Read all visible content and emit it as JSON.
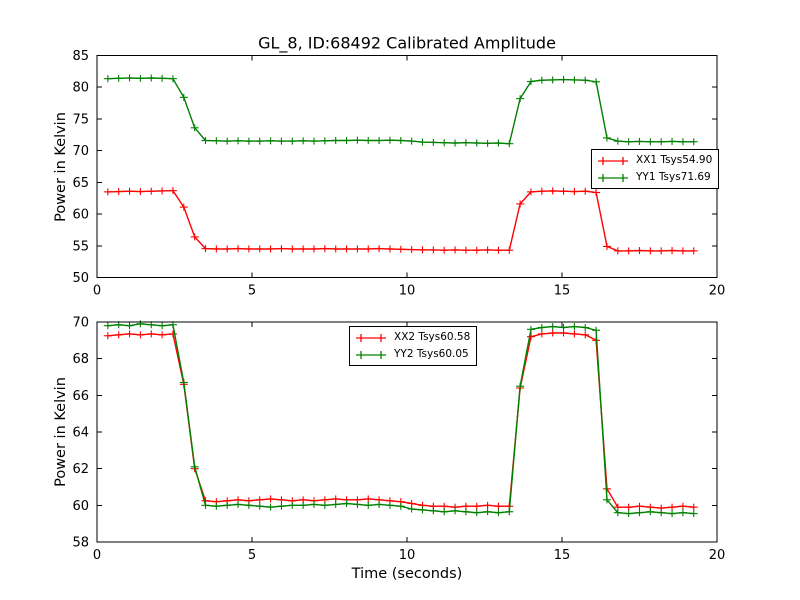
{
  "figure": {
    "background": "#ffffff",
    "text_color": "#000000"
  },
  "chart_data": [
    {
      "type": "line",
      "title": "GL_8, ID:68492 Calibrated Amplitude",
      "xlabel": "",
      "ylabel": "Power in Kelvin",
      "xlim": [
        0,
        20
      ],
      "ylim": [
        50,
        85
      ],
      "xticks": [
        0,
        5,
        10,
        15,
        20
      ],
      "yticks": [
        50,
        55,
        60,
        65,
        70,
        75,
        80,
        85
      ],
      "grid": false,
      "legend_position": "center right",
      "marker": "plus-errorbar",
      "x": [
        0.35,
        0.7,
        1.05,
        1.4,
        1.75,
        2.1,
        2.45,
        2.8,
        3.15,
        3.5,
        3.85,
        4.2,
        4.55,
        4.9,
        5.25,
        5.6,
        5.95,
        6.3,
        6.65,
        7,
        7.35,
        7.7,
        8.05,
        8.4,
        8.75,
        9.1,
        9.45,
        9.8,
        10.15,
        10.5,
        10.85,
        11.2,
        11.55,
        11.9,
        12.25,
        12.6,
        12.95,
        13.3,
        13.65,
        14,
        14.35,
        14.7,
        15.05,
        15.4,
        15.75,
        16.1,
        16.45,
        16.8,
        17.15,
        17.5,
        17.85,
        18.2,
        18.55,
        18.9,
        19.25
      ],
      "series": [
        {
          "name": "XX1 Tsys54.90",
          "color": "#ff0000",
          "values": [
            63.5,
            63.55,
            63.6,
            63.55,
            63.6,
            63.65,
            63.7,
            61.1,
            56.4,
            54.55,
            54.5,
            54.5,
            54.55,
            54.5,
            54.5,
            54.5,
            54.55,
            54.5,
            54.5,
            54.5,
            54.55,
            54.5,
            54.5,
            54.5,
            54.5,
            54.55,
            54.5,
            54.45,
            54.4,
            54.35,
            54.35,
            54.3,
            54.35,
            54.3,
            54.3,
            54.35,
            54.3,
            54.3,
            61.6,
            63.5,
            63.6,
            63.65,
            63.6,
            63.55,
            63.6,
            63.4,
            54.9,
            54.2,
            54.2,
            54.25,
            54.2,
            54.2,
            54.25,
            54.2,
            54.2
          ]
        },
        {
          "name": "YY1 Tsys71.69",
          "color": "#008000",
          "values": [
            81.35,
            81.4,
            81.45,
            81.4,
            81.45,
            81.4,
            81.35,
            78.4,
            73.6,
            71.6,
            71.55,
            71.5,
            71.55,
            71.5,
            71.5,
            71.55,
            71.5,
            71.5,
            71.55,
            71.5,
            71.55,
            71.6,
            71.6,
            71.65,
            71.6,
            71.6,
            71.65,
            71.6,
            71.5,
            71.35,
            71.3,
            71.25,
            71.2,
            71.25,
            71.2,
            71.15,
            71.2,
            71.1,
            78.2,
            80.9,
            81.1,
            81.15,
            81.2,
            81.15,
            81.1,
            80.85,
            72.0,
            71.5,
            71.4,
            71.45,
            71.4,
            71.4,
            71.45,
            71.4,
            71.4
          ]
        }
      ]
    },
    {
      "type": "line",
      "title": "",
      "xlabel": "Time (seconds)",
      "ylabel": "Power in Kelvin",
      "xlim": [
        0,
        20
      ],
      "ylim": [
        58,
        70
      ],
      "xticks": [
        0,
        5,
        10,
        15,
        20
      ],
      "yticks": [
        58,
        60,
        62,
        64,
        66,
        68,
        70
      ],
      "grid": false,
      "legend_position": "upper center",
      "marker": "plus-errorbar",
      "x": [
        0.35,
        0.7,
        1.05,
        1.4,
        1.75,
        2.1,
        2.45,
        2.8,
        3.15,
        3.5,
        3.85,
        4.2,
        4.55,
        4.9,
        5.25,
        5.6,
        5.95,
        6.3,
        6.65,
        7,
        7.35,
        7.7,
        8.05,
        8.4,
        8.75,
        9.1,
        9.45,
        9.8,
        10.15,
        10.5,
        10.85,
        11.2,
        11.55,
        11.9,
        12.25,
        12.6,
        12.95,
        13.3,
        13.65,
        14,
        14.35,
        14.7,
        15.05,
        15.4,
        15.75,
        16.1,
        16.45,
        16.8,
        17.15,
        17.5,
        17.85,
        18.2,
        18.55,
        18.9,
        19.25
      ],
      "series": [
        {
          "name": "XX2 Tsys60.58",
          "color": "#ff0000",
          "values": [
            69.25,
            69.3,
            69.35,
            69.3,
            69.35,
            69.3,
            69.35,
            66.6,
            62.0,
            60.25,
            60.2,
            60.25,
            60.3,
            60.25,
            60.3,
            60.35,
            60.3,
            60.25,
            60.3,
            60.25,
            60.3,
            60.35,
            60.3,
            60.3,
            60.35,
            60.3,
            60.25,
            60.2,
            60.1,
            60.0,
            59.95,
            59.95,
            59.9,
            59.95,
            59.95,
            60.0,
            59.95,
            59.95,
            66.4,
            69.2,
            69.35,
            69.4,
            69.4,
            69.35,
            69.3,
            69.0,
            60.9,
            59.9,
            59.9,
            59.95,
            59.9,
            59.85,
            59.9,
            59.95,
            59.9
          ]
        },
        {
          "name": "YY2 Tsys60.05",
          "color": "#008000",
          "values": [
            69.8,
            69.85,
            69.8,
            69.9,
            69.85,
            69.8,
            69.85,
            66.7,
            62.1,
            60.0,
            59.95,
            60.0,
            60.05,
            60.0,
            59.95,
            59.9,
            59.95,
            60.0,
            60.0,
            60.05,
            60.0,
            60.05,
            60.1,
            60.05,
            60.0,
            60.05,
            60.0,
            59.95,
            59.8,
            59.75,
            59.7,
            59.65,
            59.7,
            59.65,
            59.6,
            59.65,
            59.6,
            59.65,
            66.5,
            69.6,
            69.7,
            69.75,
            69.7,
            69.75,
            69.7,
            69.55,
            60.3,
            59.6,
            59.55,
            59.6,
            59.65,
            59.6,
            59.55,
            59.6,
            59.55
          ]
        }
      ]
    }
  ]
}
